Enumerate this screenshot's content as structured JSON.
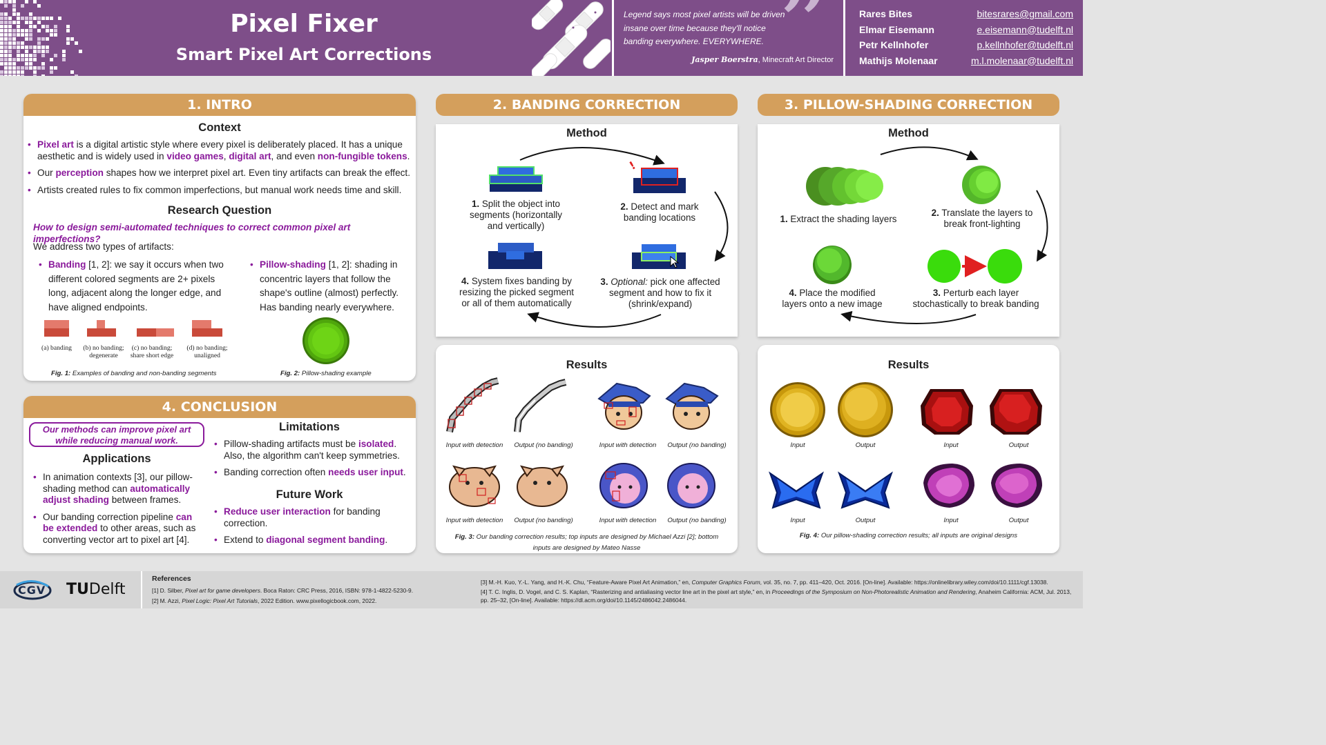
{
  "header": {
    "title": "Pixel Fixer",
    "subtitle": "Smart Pixel Art Corrections",
    "quote": "Legend says most pixel artists will be driven insane over time because they'll notice banding everywhere. EVERYWHERE.",
    "quote_author": "Jasper Boerstra",
    "quote_role": ", Minecraft Art Director",
    "authors": [
      {
        "name": "Rares Bites",
        "email": "bitesrares@gmail.com"
      },
      {
        "name": "Elmar Eisemann",
        "email": "e.eisemann@tudelft.nl"
      },
      {
        "name": "Petr Kellnhofer",
        "email": "p.kellnhofer@tudelft.nl"
      },
      {
        "name": "Mathijs Molenaar",
        "email": "m.l.molenaar@tudelft.nl"
      }
    ]
  },
  "intro": {
    "heading": "1. INTRO",
    "context_title": "Context",
    "b1_hl1": "Pixel art",
    "b1_t1": " is a digital artistic style where every pixel is deliberately placed. It has a unique aesthetic and is widely used in ",
    "b1_hl2": "video games",
    "b1_t2": ", ",
    "b1_hl3": "digital art",
    "b1_t3": ", and even ",
    "b1_hl4": "non-fungible tokens",
    "b1_t4": ".",
    "b2_t1": "Our ",
    "b2_hl": "perception",
    "b2_t2": " shapes how we interpret pixel art. Even tiny artifacts can break the effect.",
    "b3": "Artists created rules to fix common imperfections,  but manual work needs time and skill.",
    "rq_title": "Research Question",
    "rq": "How to design semi-automated techniques to correct common pixel art imperfections?",
    "address": "We address two types of artifacts:",
    "banding_hl": "Banding",
    "banding_t": " [1, 2]: we say it occurs when two different colored segments are 2+ pixels long, adjacent along the longer edge, and have aligned endpoints.",
    "pillow_hl": "Pillow-shading",
    "pillow_t": " [1, 2]: shading in concentric layers that follow the shape's outline (almost) perfectly. Has banding nearly everywhere.",
    "fig1_labels": [
      "(a) banding",
      "(b) no banding; degenerate",
      "(c) no banding; share short edge",
      "(d) no banding; unaligned"
    ],
    "fig1_num": "Fig. 1:",
    "fig1_cap": " Examples of banding and non-banding segments",
    "fig2_num": "Fig. 2:",
    "fig2_cap": " Pillow-shading example"
  },
  "conclusion": {
    "heading": "4. CONCLUSION",
    "callout": "Our methods can improve pixel art while reducing manual work.",
    "apps_title": "Applications",
    "a1_t1": "In animation contexts [3], our pillow-shading method can ",
    "a1_hl": "automatically adjust shading",
    "a1_t2": " between frames.",
    "a2_t1": "Our banding correction pipeline ",
    "a2_hl": "can be extended",
    "a2_t2": " to other areas, such as converting vector art to pixel art [4].",
    "lim_title": "Limitations",
    "l1_t1": "Pillow-shading artifacts must be ",
    "l1_hl": "isolated",
    "l1_t2": ". Also, the algorithm can't keep symmetries.",
    "l2_t1": "Banding correction often ",
    "l2_hl": "needs user input",
    "l2_t2": ".",
    "fw_title": "Future Work",
    "f1_hl": "Reduce user interaction",
    "f1_t": " for banding correction.",
    "f2_t1": "Extend to ",
    "f2_hl": "diagonal segment banding",
    "f2_t2": "."
  },
  "banding": {
    "heading": "2. BANDING CORRECTION",
    "method_title": "Method",
    "step1_num": "1.",
    "step1": " Split the object into segments (horizontally and vertically)",
    "step2_num": "2.",
    "step2": " Detect and mark banding locations",
    "step3_num": "3.",
    "step3_em": " Optional:",
    "step3": " pick one affected segment and how to fix it (shrink/expand)",
    "step4_num": "4.",
    "step4": " System fixes banding by resizing the picked segment or all of them automatically",
    "results_title": "Results",
    "captions": [
      "Input with detection",
      "Output (no banding)",
      "Input with detection",
      "Output (no banding)",
      "Input with detection",
      "Output (no banding)",
      "Input with detection",
      "Output (no banding)"
    ],
    "fig3_num": "Fig. 3:",
    "fig3_cap": " Our banding correction results; top inputs are designed by Michael Azzi [2]; bottom inputs are designed by Mateo Nasse"
  },
  "pillow": {
    "heading": "3. PILLOW-SHADING CORRECTION",
    "method_title": "Method",
    "step1_num": "1.",
    "step1": " Extract the shading layers",
    "step2_num": "2.",
    "step2": " Translate the layers to break front-lighting",
    "step3_num": "3.",
    "step3": " Perturb each layer stochastically to break banding",
    "step4_num": "4.",
    "step4": " Place the modified layers onto a new image",
    "results_title": "Results",
    "captions": [
      "Input",
      "Output",
      "Input",
      "Output",
      "Input",
      "Output",
      "Input",
      "Output"
    ],
    "fig4_num": "Fig. 4:",
    "fig4_cap": " Our pillow-shading correction results; all inputs are original designs"
  },
  "footer": {
    "logo1": "CGV",
    "logo2_a": "TU",
    "logo2_b": "Delft",
    "refs_title": "References",
    "ref1_a": "[1] D. Silber, ",
    "ref1_i": "Pixel art for game developers",
    "ref1_b": ". Boca Raton: CRC Press, 2016, ISBN: 978-1-4822-5230-9.",
    "ref2_a": "[2] M. Azzi, ",
    "ref2_i": "Pixel Logic: Pixel Art Tutorials",
    "ref2_b": ", 2022 Edition. www.pixellogicbook.com, 2022.",
    "ref3_a": "[3] M.-H. Kuo, Y.-L. Yang, and H.-K. Chu, “Feature-Aware Pixel Art Animation,” en, ",
    "ref3_i": "Computer Graphics Forum",
    "ref3_b": ", vol. 35, no. 7, pp. 411–420, Oct. 2016. [On-line]. Available: https://onlinelibrary.wiley.com/doi/10.1111/cgf.13038.",
    "ref4_a": "[4] T. C. Inglis, D. Vogel, and C. S. Kaplan, “Rasterizing and antialiasing vector line art in the pixel art style,” en, in ",
    "ref4_i": "Proceedings of the Symposium on Non-Photorealistic Animation and Rendering",
    "ref4_b": ", Anaheim California: ACM, Jul. 2013, pp. 25–32, [On-line]. Available: https://dl.acm.org/doi/10.1145/2486042.2486044."
  },
  "colors": {
    "header": "#7e4e89",
    "accent": "#8a1a9b",
    "section": "#d49f5c"
  }
}
